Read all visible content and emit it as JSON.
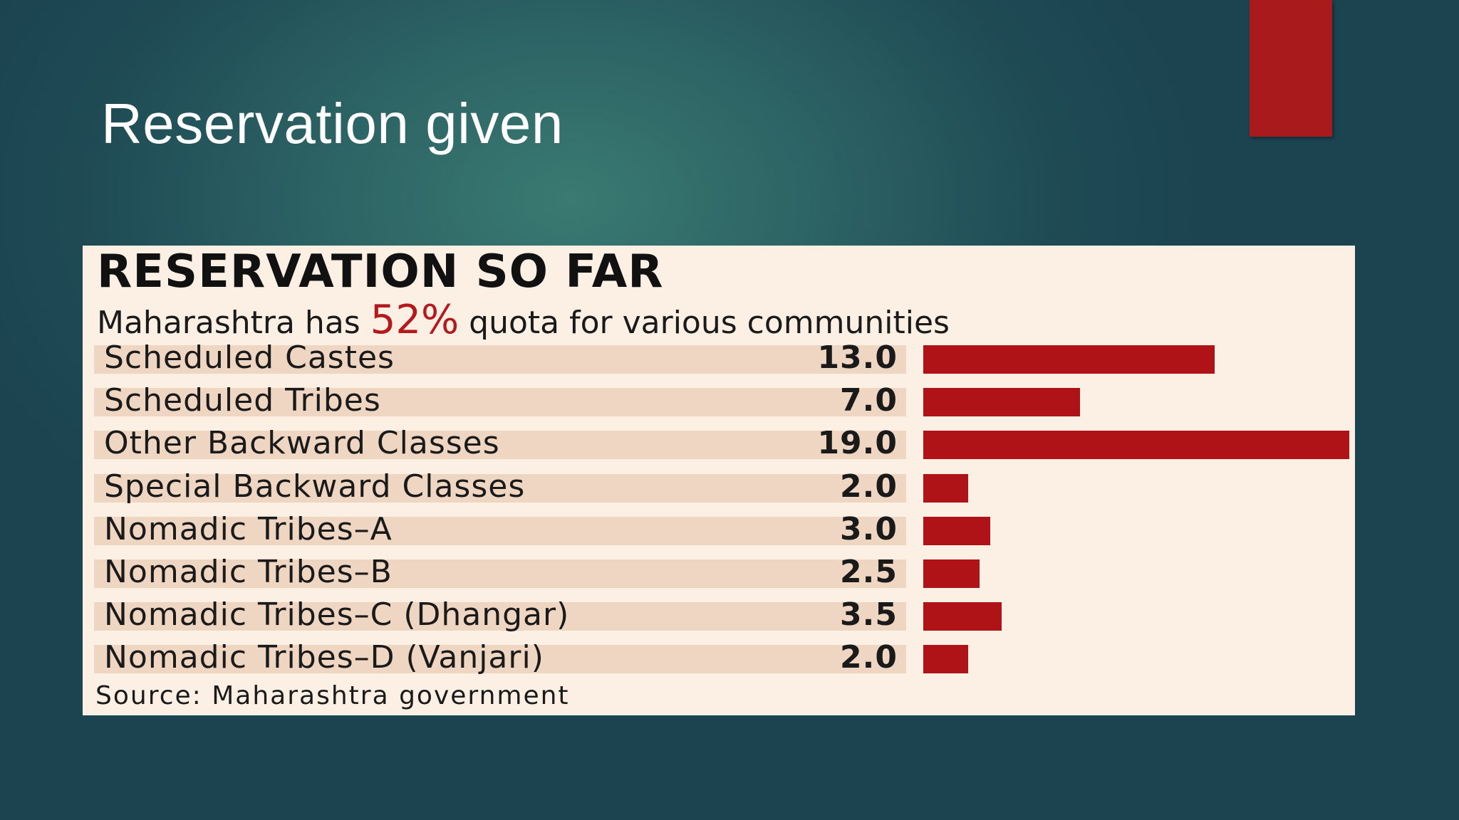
{
  "slide": {
    "title": "Reservation given"
  },
  "chart_data": {
    "type": "bar",
    "orientation": "horizontal",
    "title": "RESERVATION SO FAR",
    "subtitle_before": "Maharashtra has",
    "subtitle_highlight": "52%",
    "subtitle_after": "quota for various communities",
    "categories": [
      "Scheduled Castes",
      "Scheduled Tribes",
      "Other Backward Classes",
      "Special Backward Classes",
      "Nomadic Tribes–A",
      "Nomadic Tribes–B",
      "Nomadic Tribes–C (Dhangar)",
      "Nomadic Tribes–D (Vanjari)"
    ],
    "values": [
      13.0,
      7.0,
      19.0,
      2.0,
      3.0,
      2.5,
      3.5,
      2.0
    ],
    "value_labels": [
      "13.0",
      "7.0",
      "19.0",
      "2.0",
      "3.0",
      "2.5",
      "3.5",
      "2.0"
    ],
    "xlim": [
      0,
      19
    ],
    "grid": false,
    "source": "Source: Maharashtra government",
    "colors": {
      "bar": "#b01317",
      "highlight": "#b3191d",
      "panel_background": "#fcefe4",
      "row_background": "#efd6c2",
      "accent_tab": "#a81a1c"
    }
  }
}
